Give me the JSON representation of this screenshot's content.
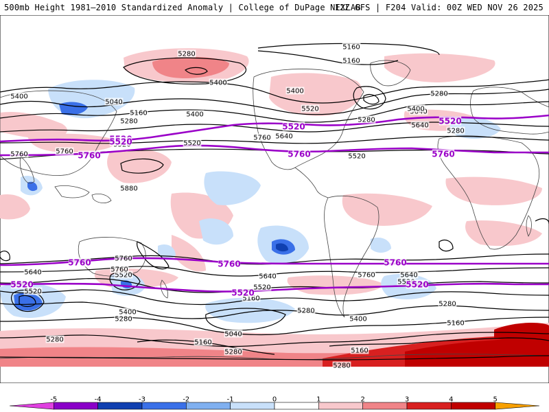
{
  "header": {
    "title": "500mb Height 1981–2010 Standardized Anomaly | College of DuPage NEXLAB",
    "run_info": "12Z GFS | F204 Valid: 00Z WED NOV 26 2025"
  },
  "colors": {
    "thick_contour": "#9a00c8",
    "height_contour": "#000000",
    "land_outline": "#444444"
  },
  "contour_labels": {
    "thin": [
      {
        "text": "5280"
      },
      {
        "text": "5160"
      },
      {
        "text": "5160"
      },
      {
        "text": "5400"
      },
      {
        "text": "5400"
      },
      {
        "text": "5040"
      },
      {
        "text": "5160"
      },
      {
        "text": "5280"
      },
      {
        "text": "5400"
      },
      {
        "text": "5520"
      },
      {
        "text": "5640"
      },
      {
        "text": "5520"
      },
      {
        "text": "5760"
      },
      {
        "text": "5640"
      },
      {
        "text": "5400"
      },
      {
        "text": "5520"
      },
      {
        "text": "5280"
      },
      {
        "text": "5400"
      },
      {
        "text": "5280"
      },
      {
        "text": "5640"
      },
      {
        "text": "5760"
      },
      {
        "text": "5520"
      },
      {
        "text": "5760"
      },
      {
        "text": "5880"
      },
      {
        "text": "5760"
      },
      {
        "text": "5520"
      },
      {
        "text": "5760"
      },
      {
        "text": "5640"
      },
      {
        "text": "5520"
      },
      {
        "text": "5640"
      },
      {
        "text": "5520"
      },
      {
        "text": "5160"
      },
      {
        "text": "5400"
      },
      {
        "text": "5280"
      },
      {
        "text": "5040"
      },
      {
        "text": "5280"
      },
      {
        "text": "5400"
      },
      {
        "text": "5760"
      },
      {
        "text": "5640"
      },
      {
        "text": "5520"
      },
      {
        "text": "5280"
      },
      {
        "text": "5160"
      },
      {
        "text": "5280"
      },
      {
        "text": "5160"
      },
      {
        "text": "5280"
      },
      {
        "text": "5160"
      },
      {
        "text": "5280"
      },
      {
        "text": "5280"
      }
    ],
    "thick": [
      {
        "text": "5520"
      },
      {
        "text": "5520"
      },
      {
        "text": "5520"
      },
      {
        "text": "5520"
      },
      {
        "text": "5760"
      },
      {
        "text": "5760"
      },
      {
        "text": "5760"
      },
      {
        "text": "5760"
      },
      {
        "text": "5760"
      },
      {
        "text": "5760"
      },
      {
        "text": "5520"
      },
      {
        "text": "5520"
      },
      {
        "text": "5520"
      }
    ]
  },
  "colorbar": {
    "ticks": [
      "-5",
      "-4",
      "-3",
      "-2",
      "-1",
      "0",
      "1",
      "2",
      "3",
      "4",
      "5"
    ],
    "bins": [
      {
        "value": -5.5,
        "color": "#e040e0"
      },
      {
        "value": -4.5,
        "color": "#8a00c8"
      },
      {
        "value": -3.5,
        "color": "#1040b0"
      },
      {
        "value": -2.5,
        "color": "#3a70e8"
      },
      {
        "value": -1.5,
        "color": "#80b0f0"
      },
      {
        "value": -0.5,
        "color": "#c8e0fa"
      },
      {
        "value": 0.5,
        "color": "#ffffff"
      },
      {
        "value": 1.5,
        "color": "#f8c8cc"
      },
      {
        "value": 2.5,
        "color": "#f08488"
      },
      {
        "value": 3.5,
        "color": "#d82020"
      },
      {
        "value": 4.5,
        "color": "#c00000"
      },
      {
        "value": 5.5,
        "color": "#f8a000"
      }
    ]
  }
}
